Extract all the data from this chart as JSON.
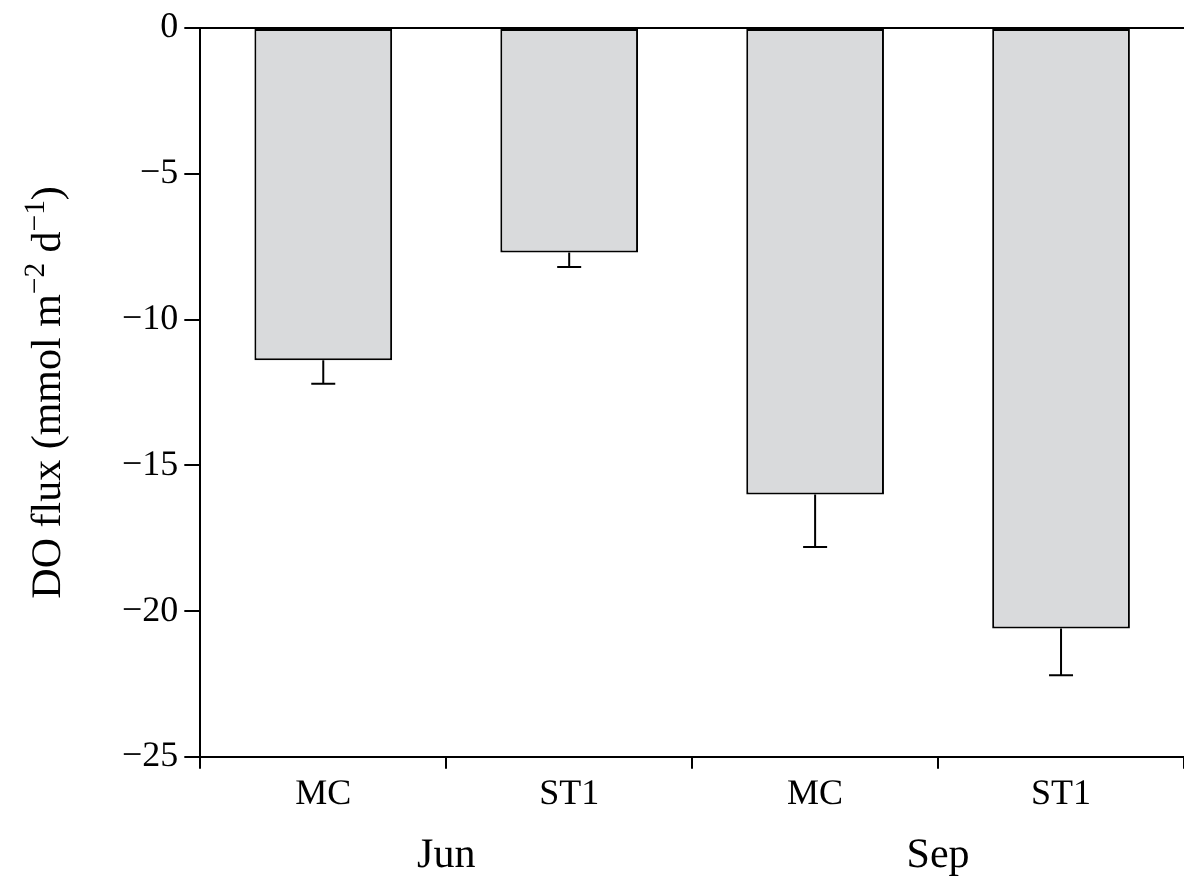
{
  "chart_data": {
    "type": "bar",
    "ylabel": "DO flux (mmol m$^{−2}$ d$^{−1}$)",
    "categories": [
      "MC",
      "ST1",
      "MC",
      "ST1"
    ],
    "values": [
      -11.4,
      -7.7,
      -16.0,
      -20.6
    ],
    "errors": [
      [
        -12.2,
        -11.4
      ],
      [
        -8.2,
        -7.7
      ],
      [
        -17.8,
        -16.0
      ],
      [
        -22.2,
        -20.6
      ]
    ],
    "color": "#d9dadc",
    "ylim": [
      -25,
      0
    ],
    "yticks": [
      -25,
      -20,
      -15,
      -10,
      -5,
      0
    ],
    "grid": false,
    "legend": false,
    "annotations": [
      "Jun",
      "Sep"
    ]
  }
}
